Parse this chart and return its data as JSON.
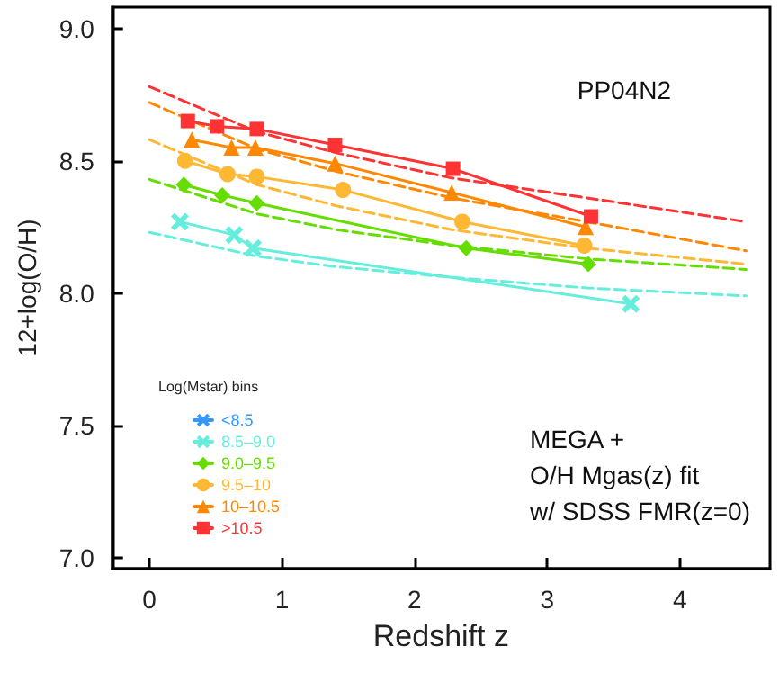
{
  "chart_data": {
    "type": "line",
    "xlabel": "Redshift z",
    "ylabel": "12+log(O/H)",
    "legend_title": "Log(Mstar) bins",
    "legend": "bottom left",
    "grid": false,
    "xlim": [
      -0.28,
      4.68
    ],
    "ylim": [
      6.96,
      9.08
    ],
    "xticks": [
      0,
      1,
      2,
      3,
      4
    ],
    "yticks": [
      {
        "value": 7,
        "label": "7.0"
      },
      {
        "value": 7.5,
        "label": "7.5"
      },
      {
        "value": 8,
        "label": "8.0"
      },
      {
        "value": 8.5,
        "label": "8.5"
      },
      {
        "value": 9,
        "label": "9.0"
      }
    ],
    "annotations": [
      "PP04N2",
      "MEGA +\nO/H Mgas(z) fit\nw/ SDSS FMR(z=0)"
    ],
    "series": [
      {
        "name": "<8.5",
        "color": "#3399ff",
        "marker": "cross",
        "line_style": "solid"
      },
      {
        "name": "8.5–9.0",
        "color": "#66eedd",
        "marker": "cross",
        "line_style": "solid",
        "x": [
          0.23,
          0.64,
          0.78,
          3.63
        ],
        "values": [
          8.27,
          8.22,
          8.17,
          7.96
        ]
      },
      {
        "name": "9.0–9.5",
        "color": "#66dd00",
        "marker": "diamond",
        "line_style": "solid",
        "x": [
          0.26,
          0.55,
          0.81,
          2.39,
          3.31
        ],
        "values": [
          8.41,
          8.37,
          8.34,
          8.17,
          8.11
        ]
      },
      {
        "name": "9.5–10",
        "color": "#ffb833",
        "marker": "circle",
        "line_style": "solid",
        "x": [
          0.27,
          0.59,
          0.81,
          1.46,
          2.36,
          3.28
        ],
        "values": [
          8.5,
          8.45,
          8.44,
          8.39,
          8.27,
          8.18
        ]
      },
      {
        "name": "10–10.5",
        "color": "#ff8800",
        "marker": "triangle",
        "line_style": "solid",
        "x": [
          0.32,
          0.62,
          0.8,
          1.4,
          2.28,
          3.29
        ],
        "values": [
          8.58,
          8.55,
          8.55,
          8.49,
          8.38,
          8.25
        ]
      },
      {
        "name": ">10.5",
        "color": "#ff3333",
        "marker": "square",
        "line_style": "solid",
        "x": [
          0.29,
          0.51,
          0.81,
          1.4,
          2.29,
          3.33
        ],
        "values": [
          8.65,
          8.63,
          8.62,
          8.56,
          8.47,
          8.29
        ]
      },
      {
        "color": "#66eedd",
        "marker": "none",
        "line_style": "dashed",
        "x": [
          0,
          0.81,
          1.41,
          2.28,
          3.3,
          4.5
        ],
        "values": [
          8.23,
          8.14,
          8.1,
          8.06,
          8.02,
          7.99
        ]
      },
      {
        "color": "#66dd00",
        "marker": "none",
        "line_style": "dashed",
        "x": [
          0,
          0.81,
          1.41,
          2.28,
          3.3,
          4.5
        ],
        "values": [
          8.43,
          8.3,
          8.24,
          8.18,
          8.13,
          8.09
        ]
      },
      {
        "color": "#ffb833",
        "marker": "none",
        "line_style": "dashed",
        "x": [
          0,
          0.81,
          1.41,
          2.28,
          3.3,
          4.5
        ],
        "values": [
          8.58,
          8.41,
          8.33,
          8.24,
          8.17,
          8.11
        ]
      },
      {
        "color": "#ff8800",
        "marker": "none",
        "line_style": "dashed",
        "x": [
          0,
          0.81,
          1.41,
          2.28,
          3.3,
          4.5
        ],
        "values": [
          8.72,
          8.545,
          8.46,
          8.36,
          8.27,
          8.16
        ]
      },
      {
        "color": "#ff3333",
        "marker": "none",
        "line_style": "dashed",
        "x": [
          0,
          0.81,
          1.41,
          2.28,
          3.3,
          4.5
        ],
        "values": [
          8.78,
          8.61,
          8.53,
          8.435,
          8.36,
          8.27
        ]
      }
    ]
  }
}
